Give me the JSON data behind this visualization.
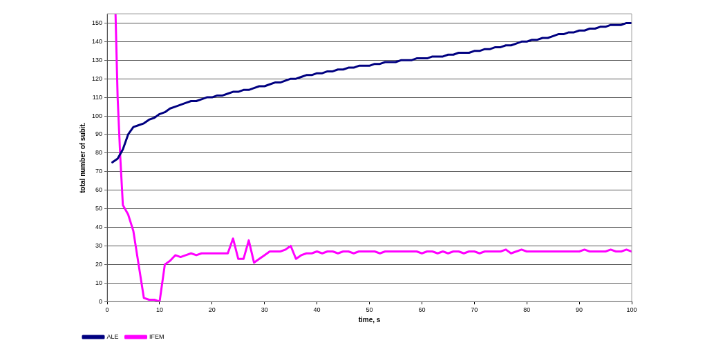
{
  "chart_data": {
    "type": "line",
    "xlabel": "time, s",
    "ylabel": "total number of subit.",
    "xlim": [
      0,
      100
    ],
    "xticks": [
      0,
      10,
      20,
      30,
      40,
      50,
      60,
      70,
      80,
      90,
      100
    ],
    "ylim": [
      0,
      155
    ],
    "yticks": [
      0,
      10,
      20,
      30,
      40,
      50,
      60,
      70,
      80,
      90,
      100,
      110,
      120,
      130,
      140,
      150
    ],
    "grid": "y",
    "legend": "bottom left",
    "marker": "none",
    "line_style": "solid",
    "series": [
      {
        "name": "ALE",
        "color": "#000080",
        "x": [
          1,
          2,
          3,
          4,
          5,
          6,
          7,
          8,
          9,
          10,
          11,
          12,
          13,
          14,
          15,
          16,
          17,
          18,
          19,
          20,
          21,
          22,
          23,
          24,
          25,
          26,
          27,
          28,
          29,
          30,
          31,
          32,
          33,
          34,
          35,
          36,
          37,
          38,
          39,
          40,
          41,
          42,
          43,
          44,
          45,
          46,
          47,
          48,
          49,
          50,
          51,
          52,
          53,
          54,
          55,
          56,
          57,
          58,
          59,
          60,
          61,
          62,
          63,
          64,
          65,
          66,
          67,
          68,
          69,
          70,
          71,
          72,
          73,
          74,
          75,
          76,
          77,
          78,
          79,
          80,
          81,
          82,
          83,
          84,
          85,
          86,
          87,
          88,
          89,
          90,
          91,
          92,
          93,
          94,
          95,
          96,
          97,
          98,
          99,
          100
        ],
        "values": [
          75,
          77,
          82,
          90,
          94,
          95,
          96,
          98,
          99,
          101,
          102,
          104,
          105,
          106,
          107,
          108,
          108,
          109,
          110,
          110,
          111,
          111,
          112,
          113,
          113,
          114,
          114,
          115,
          116,
          116,
          117,
          118,
          118,
          119,
          120,
          120,
          121,
          122,
          122,
          123,
          123,
          124,
          124,
          125,
          125,
          126,
          126,
          127,
          127,
          127,
          128,
          128,
          129,
          129,
          129,
          130,
          130,
          130,
          131,
          131,
          131,
          132,
          132,
          132,
          133,
          133,
          134,
          134,
          134,
          135,
          135,
          136,
          136,
          137,
          137,
          138,
          138,
          139,
          140,
          140,
          141,
          141,
          142,
          142,
          143,
          144,
          144,
          145,
          145,
          146,
          146,
          147,
          147,
          148,
          148,
          149,
          149,
          149,
          150,
          150
        ]
      },
      {
        "name": "IFEM",
        "color": "#ff00ff",
        "x": [
          1.6,
          2,
          2.5,
          3,
          4,
          5,
          6,
          7,
          8,
          9,
          10,
          11,
          12,
          13,
          14,
          15,
          16,
          17,
          18,
          22,
          23,
          24,
          25,
          26,
          27,
          28,
          29,
          30,
          31,
          33,
          34,
          35,
          36,
          37,
          38,
          39,
          40,
          41,
          42,
          43,
          44,
          45,
          46,
          47,
          48,
          51,
          52,
          53,
          59,
          60,
          61,
          62,
          63,
          64,
          65,
          66,
          67,
          68,
          69,
          70,
          71,
          72,
          75,
          76,
          77,
          78,
          79,
          80,
          90,
          91,
          92,
          95,
          96,
          97,
          98,
          99,
          100
        ],
        "values": [
          155,
          110,
          78,
          52,
          47,
          38,
          20,
          2,
          1,
          1,
          0,
          20,
          22,
          25,
          24,
          25,
          26,
          25,
          26,
          26,
          26,
          34,
          23,
          23,
          33,
          21,
          23,
          25,
          27,
          27,
          28,
          30,
          23,
          25,
          26,
          26,
          27,
          26,
          27,
          27,
          26,
          27,
          27,
          26,
          27,
          27,
          26,
          27,
          27,
          26,
          27,
          27,
          26,
          27,
          26,
          27,
          27,
          26,
          27,
          27,
          26,
          27,
          27,
          28,
          26,
          27,
          28,
          27,
          27,
          28,
          27,
          27,
          28,
          27,
          27,
          28,
          27
        ]
      }
    ]
  }
}
